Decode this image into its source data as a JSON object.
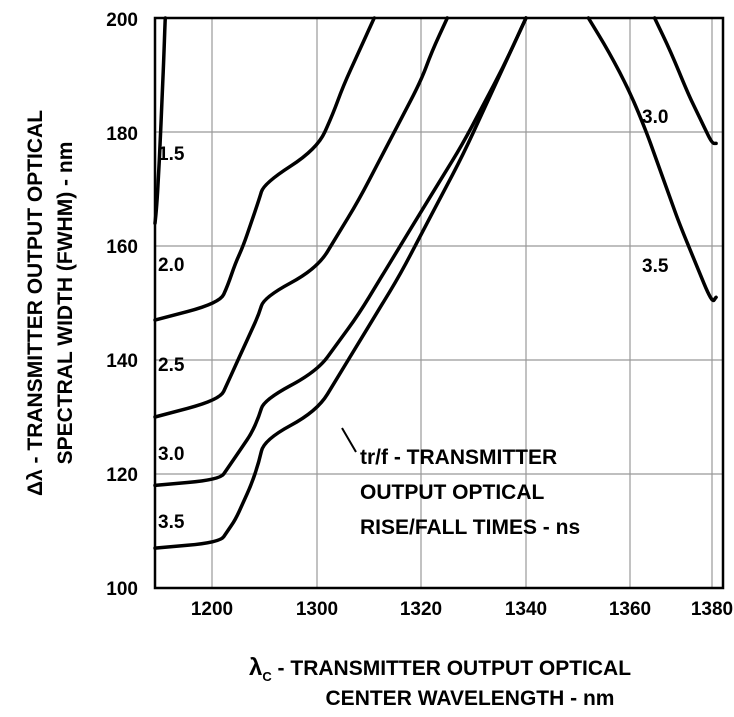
{
  "chart_data": {
    "type": "line",
    "xlabel": {
      "symbol": "λ",
      "subscript": "C",
      "line1": " - TRANSMITTER OUTPUT OPTICAL",
      "line2": "CENTER WAVELENGTH - nm"
    },
    "ylabel": {
      "line1": "Δλ - TRANSMITTER OUTPUT OPTICAL",
      "line2": "SPECTRAL WIDTH (FWHM) - nm"
    },
    "x_ticks": [
      "1200",
      "1300",
      "1320",
      "1340",
      "1360",
      "1380"
    ],
    "y_ticks": [
      "100",
      "120",
      "140",
      "160",
      "180",
      "200"
    ],
    "ylim": [
      100,
      200
    ],
    "grid": true,
    "annotation": [
      "tr/f - TRANSMITTER",
      "OUTPUT OPTICAL",
      "RISE/FALL TIMES - ns"
    ],
    "series": [
      {
        "name": "1.5",
        "x": [
          1100,
          1103,
          1106,
          1109,
          1112,
          1115,
          1118
        ],
        "y": [
          164,
          167,
          172,
          178,
          185,
          192,
          200
        ]
      },
      {
        "name": "2.0",
        "x": [
          1100,
          1203,
          1206,
          1209,
          1212,
          1215,
          1218,
          1220,
          1300,
          1303,
          1305,
          1308,
          1311
        ],
        "y": [
          147,
          150,
          153,
          157,
          160,
          164,
          168,
          171,
          177,
          183,
          188,
          194,
          200
        ]
      },
      {
        "name": "2.5",
        "x": [
          1100,
          1203,
          1206,
          1209,
          1212,
          1215,
          1218,
          1220,
          1300,
          1304,
          1308,
          1312,
          1316,
          1320,
          1322,
          1325
        ],
        "y": [
          130,
          133,
          136,
          139,
          142,
          145,
          148,
          151,
          156,
          162,
          168,
          175,
          182,
          189,
          194,
          200
        ]
      },
      {
        "name": "3.0",
        "x": [
          1100,
          1203,
          1206,
          1209,
          1212,
          1215,
          1218,
          1220,
          1300,
          1304,
          1308,
          1312,
          1316,
          1320,
          1324,
          1328,
          1332,
          1336,
          1340
        ],
        "y": [
          118,
          119,
          121,
          123,
          125,
          127,
          130,
          133,
          138,
          143,
          148,
          154,
          160,
          166,
          172,
          178,
          185,
          192,
          200
        ]
      },
      {
        "name": "3.5",
        "x": [
          1100,
          1203,
          1206,
          1209,
          1212,
          1215,
          1218,
          1220,
          1300,
          1304,
          1308,
          1312,
          1316,
          1320,
          1324,
          1328,
          1332,
          1336,
          1340
        ],
        "y": [
          107,
          108,
          110,
          112,
          115,
          118,
          122,
          126,
          131,
          137,
          143,
          149,
          155,
          162,
          169,
          176,
          184,
          192,
          200
        ]
      },
      {
        "name": "3.0",
        "x": [
          1352,
          1356,
          1360,
          1364,
          1366,
          1370,
          1372,
          1376,
          1380,
          1381
        ],
        "y": [
          200,
          194,
          187,
          180,
          176,
          168,
          164,
          157,
          150,
          151
        ]
      },
      {
        "name": "3.5",
        "x": [
          1366,
          1370,
          1374,
          1376,
          1378,
          1380,
          1381
        ],
        "y": [
          200,
          194,
          187,
          184,
          181,
          178,
          178
        ]
      }
    ]
  }
}
